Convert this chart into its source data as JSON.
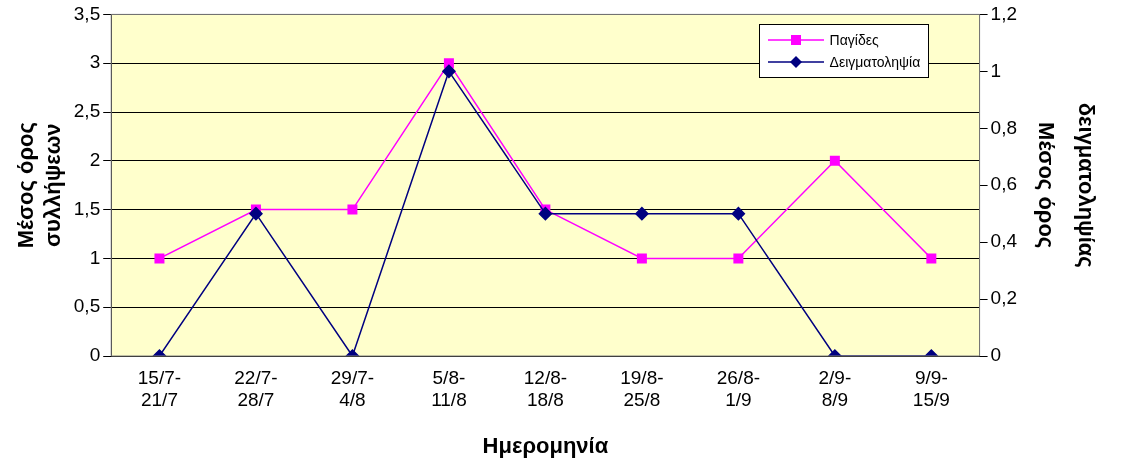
{
  "chart_data": {
    "type": "line",
    "xlabel": "Ημερομηνία",
    "ylabel": "Μέσος όρος\nσυλλήψεων",
    "y2label": "Μέσος όρος\nδειγματοληψίας",
    "categories": [
      "15/7-\n21/7",
      "22/7-\n28/7",
      "29/7-\n4/8",
      "5/8-\n11/8",
      "12/8-\n18/8",
      "19/8-\n25/8",
      "26/8-\n1/9",
      "2/9-\n8/9",
      "9/9-\n15/9"
    ],
    "series": [
      {
        "name": "Παγίδες",
        "color": "#ff00ff",
        "marker": "square",
        "values": [
          1,
          1.5,
          1.5,
          3,
          1.5,
          1,
          1,
          2,
          1
        ]
      },
      {
        "name": "Δειγματοληψία",
        "color": "#000080",
        "marker": "diamond",
        "axis": "y2",
        "values": [
          0,
          0.5,
          0,
          1,
          0.5,
          0.5,
          0.5,
          0,
          0
        ]
      }
    ],
    "ylim": [
      0,
      3.5
    ],
    "yticks": [
      0,
      {
        "value": 0.5,
        "label": "0,5"
      },
      1,
      {
        "value": 1.5,
        "label": "1,5"
      },
      2,
      {
        "value": 2.5,
        "label": "2,5"
      },
      3,
      {
        "value": 3.5,
        "label": "3,5"
      }
    ],
    "y2lim": [
      0,
      1.2
    ],
    "y2ticks": [
      0,
      {
        "value": 0.2,
        "label": "0,2"
      },
      {
        "value": 0.4,
        "label": "0,4"
      },
      {
        "value": 0.6,
        "label": "0,6"
      },
      {
        "value": 0.8,
        "label": "0,8"
      },
      1,
      {
        "value": 1.2,
        "label": "1,2"
      }
    ],
    "grid": "y",
    "legend": "top right",
    "line_style": "solid"
  }
}
